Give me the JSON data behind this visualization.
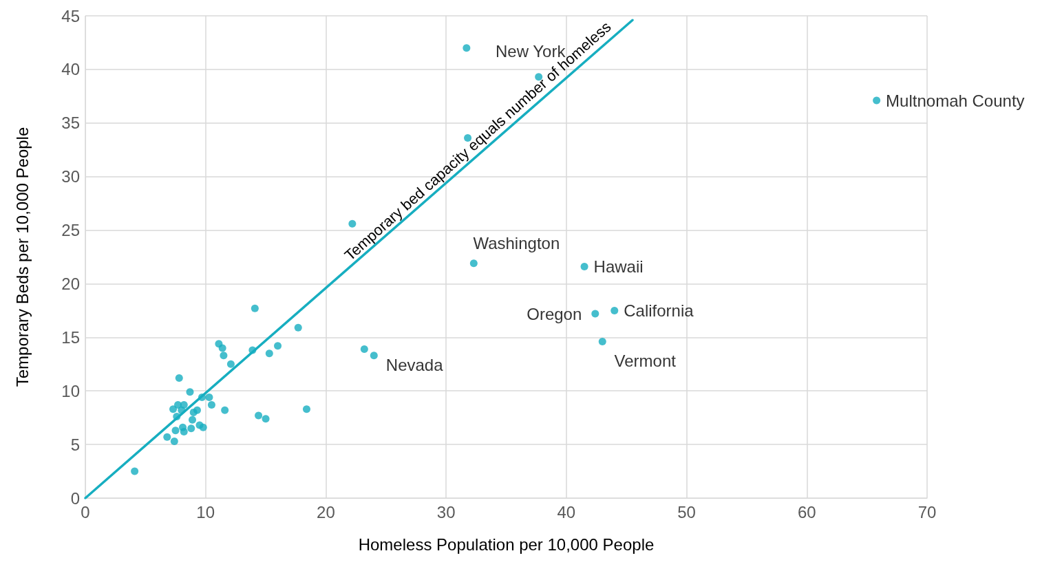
{
  "chart_data": {
    "type": "scatter",
    "xlabel": "Homeless Population per 10,000 People",
    "ylabel": "Temporary Beds per 10,000 People",
    "xlim": [
      0,
      70
    ],
    "xticks": [
      0,
      10,
      20,
      30,
      40,
      50,
      60,
      70
    ],
    "ylim": [
      0,
      45
    ],
    "yticks": [
      0,
      5,
      10,
      15,
      20,
      25,
      30,
      35,
      40,
      45
    ],
    "grid": true,
    "marker": "circle",
    "annotations": [
      {
        "text": "Temporary bed capacity equals number of homeless",
        "x": 33.2,
        "y": 32.6
      }
    ],
    "series": [
      {
        "color": "#17aec0",
        "x": [
          4.1,
          6.8,
          7.4,
          7.3,
          7.5,
          7.6,
          7.8,
          7.7,
          8.2,
          8.0,
          8.1,
          8.2,
          8.7,
          8.8,
          8.9,
          9.0,
          9.3,
          9.5,
          9.8,
          9.7,
          10.3,
          10.5,
          11.1,
          11.4,
          11.5,
          11.6,
          12.1,
          13.9,
          14.1,
          14.4,
          15.0,
          15.3,
          16.0,
          17.7,
          18.4,
          22.2,
          23.2,
          24.0,
          31.7,
          31.8,
          32.3,
          37.7,
          41.5,
          42.4,
          43.0,
          44.0,
          65.8
        ],
        "values": [
          2.5,
          5.7,
          5.3,
          8.3,
          6.3,
          7.6,
          11.2,
          8.7,
          8.7,
          8.2,
          6.6,
          6.2,
          9.9,
          6.5,
          7.3,
          8.0,
          8.2,
          6.8,
          6.6,
          9.4,
          9.4,
          8.7,
          14.4,
          14.0,
          13.3,
          8.2,
          12.5,
          13.8,
          17.7,
          7.7,
          7.4,
          13.5,
          14.2,
          15.9,
          8.3,
          25.6,
          13.9,
          13.3,
          42.0,
          33.6,
          21.9,
          39.3,
          21.6,
          17.2,
          14.6,
          17.5,
          37.1
        ],
        "value_labels": [
          null,
          null,
          null,
          null,
          null,
          null,
          null,
          null,
          null,
          null,
          null,
          null,
          null,
          null,
          null,
          null,
          null,
          null,
          null,
          null,
          null,
          null,
          null,
          null,
          null,
          null,
          null,
          null,
          null,
          null,
          null,
          null,
          null,
          null,
          null,
          null,
          null,
          "Nevada",
          null,
          null,
          "Washington",
          "New York",
          "Hawaii",
          "Oregon",
          "Vermont",
          "California",
          "Multnomah County"
        ]
      },
      {
        "type": "line",
        "color": "#17aec0",
        "x": [
          0,
          45.5
        ],
        "values": [
          0,
          44.6
        ],
        "marker": "none",
        "line_style": "solid"
      }
    ]
  }
}
